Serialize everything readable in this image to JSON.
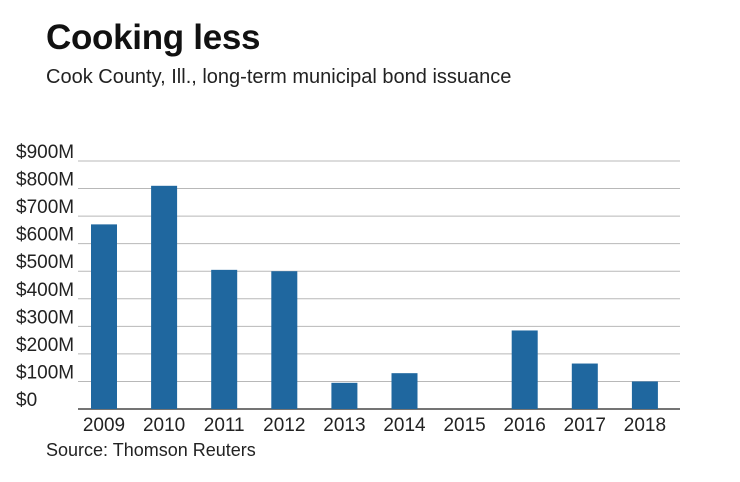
{
  "title": "Cooking less",
  "subtitle": "Cook County, Ill., long-term municipal bond issuance",
  "source": "Source: Thomson Reuters",
  "colors": {
    "bar": "#1f679f",
    "grid": "#b8b8b8",
    "axis": "#222222"
  },
  "chart_data": {
    "type": "bar",
    "title": "Cooking less",
    "subtitle": "Cook County, Ill., long-term municipal bond issuance",
    "xlabel": "",
    "ylabel": "",
    "categories": [
      "2009",
      "2010",
      "2011",
      "2012",
      "2013",
      "2014",
      "2015",
      "2016",
      "2017",
      "2018"
    ],
    "values": [
      670,
      810,
      505,
      500,
      95,
      130,
      0,
      285,
      165,
      100
    ],
    "unit": "millions of dollars",
    "ylim": [
      0,
      900
    ],
    "yticks": [
      0,
      100,
      200,
      300,
      400,
      500,
      600,
      700,
      800,
      900
    ],
    "ytick_labels": [
      "$0",
      "$100M",
      "$200M",
      "$300M",
      "$400M",
      "$500M",
      "$600M",
      "$700M",
      "$800M",
      "$900M"
    ],
    "grid": true,
    "legend": "none"
  }
}
